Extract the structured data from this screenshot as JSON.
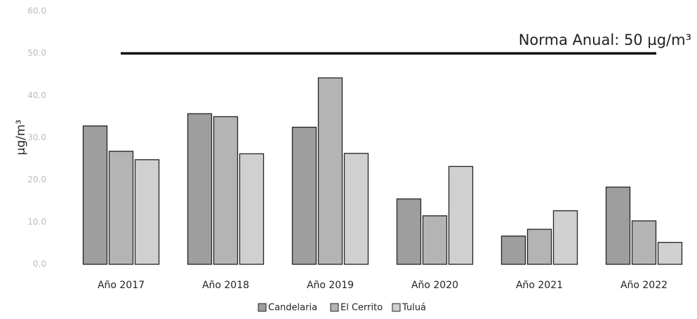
{
  "chart_data": {
    "type": "bar",
    "categories": [
      "Año 2017",
      "Año 2018",
      "Año 2019",
      "Año 2020",
      "Año 2021",
      "Año 2022"
    ],
    "series": [
      {
        "name": "Candelaria",
        "color": "#9e9e9e",
        "values": [
          32.8,
          35.7,
          32.5,
          15.5,
          6.7,
          18.3
        ]
      },
      {
        "name": "El Cerrito",
        "color": "#b4b4b4",
        "values": [
          26.8,
          35.0,
          44.2,
          11.5,
          8.3,
          10.3
        ]
      },
      {
        "name": "Tuluá",
        "color": "#d0d0d0",
        "values": [
          24.8,
          26.2,
          26.3,
          23.2,
          12.7,
          5.2
        ]
      }
    ],
    "y_label": "µg/m³",
    "ylim": [
      0,
      60
    ],
    "yticks": [
      {
        "value": 0,
        "label": "0.0"
      },
      {
        "value": 10,
        "label": "10.0"
      },
      {
        "value": 20,
        "label": "20.0"
      },
      {
        "value": 30,
        "label": "30.0"
      },
      {
        "value": 40,
        "label": "40.0"
      },
      {
        "value": 50,
        "label": "50.0"
      },
      {
        "value": 60,
        "label": "60.0"
      }
    ],
    "reference_line": {
      "value": 50,
      "label": "Norma Anual: 50 µg/m³"
    },
    "legend": "bottom",
    "grid": false
  }
}
